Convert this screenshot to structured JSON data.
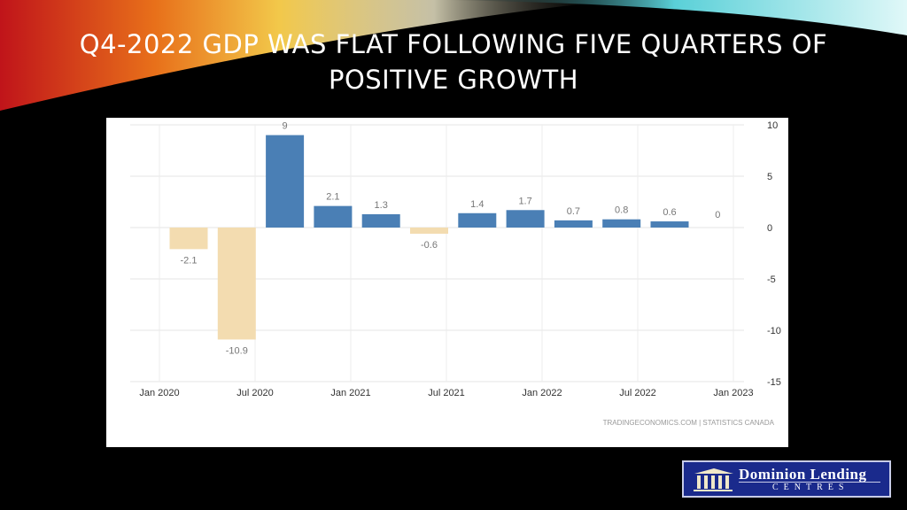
{
  "slide": {
    "title_line1": "Q4-2022 GDP WAS FLAT FOLLOWING FIVE QUARTERS OF",
    "title_line2": "POSITIVE GROWTH"
  },
  "logo": {
    "name": "Dominion Lending",
    "sub": "CENTRES"
  },
  "colors": {
    "positive": "#4a7fb5",
    "negative": "#f3dcb0",
    "background": "#000000"
  },
  "chart_data": {
    "type": "bar",
    "categories": [
      "Q1 2020",
      "Q2 2020",
      "Q3 2020",
      "Q4 2020",
      "Q1 2021",
      "Q2 2021",
      "Q3 2021",
      "Q4 2021",
      "Q1 2022",
      "Q2 2022",
      "Q3 2022",
      "Q4 2022"
    ],
    "values": [
      -2.1,
      -10.9,
      9,
      2.1,
      1.3,
      -0.6,
      1.4,
      1.7,
      0.7,
      0.8,
      0.6,
      0
    ],
    "x_tick_labels": [
      "Jan 2020",
      "Jul 2020",
      "Jan 2021",
      "Jul 2021",
      "Jan 2022",
      "Jul 2022",
      "Jan 2023"
    ],
    "y_ticks": [
      10,
      5,
      0,
      -5,
      -10,
      -15
    ],
    "ylim": [
      -15,
      10
    ],
    "y_axis_side": "right",
    "grid": true,
    "source": "TRADINGECONOMICS.COM  |  STATISTICS CANADA"
  }
}
